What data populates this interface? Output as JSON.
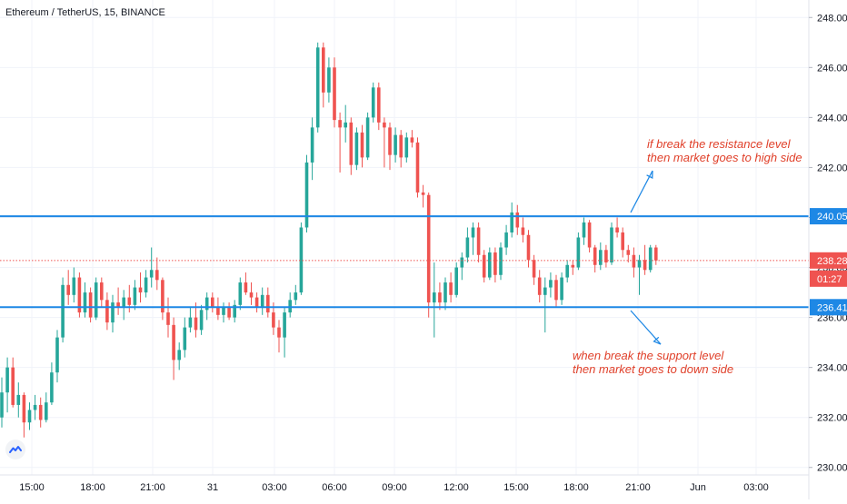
{
  "header": {
    "title": "Ethereum / TetherUS, 15, BINANCE"
  },
  "colors": {
    "up": "#26a69a",
    "down": "#ef5350",
    "line": "#1e88e5",
    "annotation": "#e0402a"
  },
  "chart_data": {
    "type": "candlestick",
    "title": "Ethereum / TetherUS, 15, BINANCE",
    "ylim": [
      229.7,
      248.7
    ],
    "y_ticks": [
      "230.00",
      "232.00",
      "234.00",
      "236.00",
      "238.00",
      "240.00",
      "242.00",
      "244.00",
      "246.00",
      "248.00"
    ],
    "x_ticks": [
      "15:00",
      "18:00",
      "21:00",
      "31",
      "03:00",
      "06:00",
      "09:00",
      "12:00",
      "15:00",
      "18:00",
      "21:00",
      "Jun",
      "03:00"
    ],
    "last_price": "238.28",
    "countdown": "01:27",
    "resistance": {
      "value": "240.05",
      "annotation_lines": [
        "if break the resistance level",
        "then market goes to high side"
      ]
    },
    "support": {
      "value": "236.41",
      "annotation_lines": [
        "when break the support level",
        "then market goes to down side"
      ]
    },
    "candles": [
      {
        "o": 232.0,
        "h": 233.6,
        "l": 231.6,
        "c": 233.0
      },
      {
        "o": 233.0,
        "h": 234.4,
        "l": 232.2,
        "c": 234.0
      },
      {
        "o": 234.0,
        "h": 234.4,
        "l": 232.4,
        "c": 232.5
      },
      {
        "o": 232.5,
        "h": 233.4,
        "l": 232.0,
        "c": 232.9
      },
      {
        "o": 232.9,
        "h": 233.0,
        "l": 231.2,
        "c": 231.8
      },
      {
        "o": 231.8,
        "h": 232.6,
        "l": 231.5,
        "c": 232.3
      },
      {
        "o": 232.3,
        "h": 232.9,
        "l": 231.9,
        "c": 232.5
      },
      {
        "o": 232.5,
        "h": 232.8,
        "l": 231.6,
        "c": 231.9
      },
      {
        "o": 231.9,
        "h": 233.0,
        "l": 231.8,
        "c": 232.6
      },
      {
        "o": 232.6,
        "h": 234.2,
        "l": 232.5,
        "c": 233.8
      },
      {
        "o": 233.8,
        "h": 235.5,
        "l": 233.4,
        "c": 235.2
      },
      {
        "o": 235.2,
        "h": 237.6,
        "l": 235.0,
        "c": 237.3
      },
      {
        "o": 237.3,
        "h": 237.9,
        "l": 236.5,
        "c": 236.9
      },
      {
        "o": 236.9,
        "h": 238.0,
        "l": 236.6,
        "c": 237.6
      },
      {
        "o": 237.6,
        "h": 237.8,
        "l": 236.0,
        "c": 236.2
      },
      {
        "o": 236.2,
        "h": 237.4,
        "l": 236.0,
        "c": 237.0
      },
      {
        "o": 237.0,
        "h": 237.2,
        "l": 235.8,
        "c": 236.0
      },
      {
        "o": 236.0,
        "h": 237.6,
        "l": 235.9,
        "c": 237.4
      },
      {
        "o": 237.4,
        "h": 237.6,
        "l": 236.4,
        "c": 236.7
      },
      {
        "o": 236.7,
        "h": 237.0,
        "l": 235.5,
        "c": 235.8
      },
      {
        "o": 235.8,
        "h": 236.9,
        "l": 235.4,
        "c": 236.6
      },
      {
        "o": 236.6,
        "h": 237.2,
        "l": 236.1,
        "c": 236.4
      },
      {
        "o": 236.4,
        "h": 237.1,
        "l": 235.9,
        "c": 236.8
      },
      {
        "o": 236.8,
        "h": 237.3,
        "l": 236.2,
        "c": 236.5
      },
      {
        "o": 236.5,
        "h": 237.5,
        "l": 236.3,
        "c": 237.2
      },
      {
        "o": 237.2,
        "h": 237.8,
        "l": 236.6,
        "c": 237.0
      },
      {
        "o": 237.0,
        "h": 237.9,
        "l": 236.8,
        "c": 237.6
      },
      {
        "o": 237.6,
        "h": 238.8,
        "l": 237.2,
        "c": 237.9
      },
      {
        "o": 237.9,
        "h": 238.4,
        "l": 237.1,
        "c": 237.5
      },
      {
        "o": 237.5,
        "h": 237.6,
        "l": 235.9,
        "c": 236.2
      },
      {
        "o": 236.2,
        "h": 236.8,
        "l": 235.2,
        "c": 235.7
      },
      {
        "o": 235.7,
        "h": 236.0,
        "l": 233.5,
        "c": 234.3
      },
      {
        "o": 234.3,
        "h": 235.0,
        "l": 233.9,
        "c": 234.7
      },
      {
        "o": 234.7,
        "h": 236.0,
        "l": 234.4,
        "c": 235.6
      },
      {
        "o": 235.6,
        "h": 236.4,
        "l": 235.4,
        "c": 236.0
      },
      {
        "o": 236.0,
        "h": 236.6,
        "l": 235.2,
        "c": 235.5
      },
      {
        "o": 235.5,
        "h": 236.5,
        "l": 235.3,
        "c": 236.3
      },
      {
        "o": 236.3,
        "h": 237.0,
        "l": 235.9,
        "c": 236.8
      },
      {
        "o": 236.8,
        "h": 237.0,
        "l": 236.2,
        "c": 236.4
      },
      {
        "o": 236.4,
        "h": 236.8,
        "l": 235.9,
        "c": 236.1
      },
      {
        "o": 236.1,
        "h": 236.6,
        "l": 235.8,
        "c": 236.4
      },
      {
        "o": 236.4,
        "h": 236.6,
        "l": 235.9,
        "c": 236.0
      },
      {
        "o": 236.0,
        "h": 236.7,
        "l": 235.8,
        "c": 236.5
      },
      {
        "o": 236.5,
        "h": 237.6,
        "l": 236.3,
        "c": 237.4
      },
      {
        "o": 237.4,
        "h": 237.8,
        "l": 236.9,
        "c": 237.0
      },
      {
        "o": 237.0,
        "h": 237.4,
        "l": 236.5,
        "c": 236.8
      },
      {
        "o": 236.8,
        "h": 237.0,
        "l": 236.2,
        "c": 236.4
      },
      {
        "o": 236.4,
        "h": 237.2,
        "l": 236.1,
        "c": 236.9
      },
      {
        "o": 236.9,
        "h": 237.2,
        "l": 236.0,
        "c": 236.2
      },
      {
        "o": 236.2,
        "h": 236.6,
        "l": 235.3,
        "c": 235.6
      },
      {
        "o": 235.6,
        "h": 235.9,
        "l": 234.6,
        "c": 235.2
      },
      {
        "o": 235.2,
        "h": 236.4,
        "l": 234.4,
        "c": 236.2
      },
      {
        "o": 236.2,
        "h": 237.0,
        "l": 236.0,
        "c": 236.7
      },
      {
        "o": 236.7,
        "h": 237.3,
        "l": 236.5,
        "c": 237.0
      },
      {
        "o": 237.0,
        "h": 239.8,
        "l": 236.9,
        "c": 239.6
      },
      {
        "o": 239.6,
        "h": 242.5,
        "l": 239.4,
        "c": 242.2
      },
      {
        "o": 242.2,
        "h": 244.0,
        "l": 241.5,
        "c": 243.6
      },
      {
        "o": 243.6,
        "h": 247.0,
        "l": 243.4,
        "c": 246.8
      },
      {
        "o": 246.8,
        "h": 247.0,
        "l": 244.4,
        "c": 245.0
      },
      {
        "o": 245.0,
        "h": 246.4,
        "l": 244.6,
        "c": 246.0
      },
      {
        "o": 246.0,
        "h": 246.4,
        "l": 243.6,
        "c": 243.9
      },
      {
        "o": 243.9,
        "h": 244.2,
        "l": 241.8,
        "c": 243.6
      },
      {
        "o": 243.6,
        "h": 244.5,
        "l": 243.0,
        "c": 243.8
      },
      {
        "o": 243.8,
        "h": 244.0,
        "l": 241.7,
        "c": 242.1
      },
      {
        "o": 242.1,
        "h": 243.6,
        "l": 241.9,
        "c": 243.4
      },
      {
        "o": 243.4,
        "h": 243.7,
        "l": 242.0,
        "c": 242.4
      },
      {
        "o": 242.4,
        "h": 244.2,
        "l": 242.3,
        "c": 244.0
      },
      {
        "o": 244.0,
        "h": 245.4,
        "l": 243.8,
        "c": 245.2
      },
      {
        "o": 245.2,
        "h": 245.4,
        "l": 243.5,
        "c": 243.8
      },
      {
        "o": 243.8,
        "h": 244.0,
        "l": 242.0,
        "c": 243.6
      },
      {
        "o": 243.6,
        "h": 243.8,
        "l": 241.9,
        "c": 242.5
      },
      {
        "o": 242.5,
        "h": 243.6,
        "l": 242.2,
        "c": 243.3
      },
      {
        "o": 243.3,
        "h": 243.5,
        "l": 242.0,
        "c": 242.4
      },
      {
        "o": 242.4,
        "h": 243.4,
        "l": 242.2,
        "c": 243.2
      },
      {
        "o": 243.2,
        "h": 243.5,
        "l": 242.8,
        "c": 243.0
      },
      {
        "o": 243.0,
        "h": 243.2,
        "l": 240.8,
        "c": 241.0
      },
      {
        "o": 241.0,
        "h": 241.3,
        "l": 240.4,
        "c": 240.9
      },
      {
        "o": 240.9,
        "h": 241.0,
        "l": 236.0,
        "c": 236.6
      },
      {
        "o": 236.6,
        "h": 238.2,
        "l": 235.2,
        "c": 237.0
      },
      {
        "o": 237.0,
        "h": 237.4,
        "l": 236.3,
        "c": 236.6
      },
      {
        "o": 236.6,
        "h": 237.6,
        "l": 236.3,
        "c": 237.4
      },
      {
        "o": 237.4,
        "h": 237.8,
        "l": 236.6,
        "c": 236.9
      },
      {
        "o": 236.9,
        "h": 238.2,
        "l": 236.8,
        "c": 238.0
      },
      {
        "o": 238.0,
        "h": 238.6,
        "l": 237.5,
        "c": 238.4
      },
      {
        "o": 238.4,
        "h": 239.6,
        "l": 238.2,
        "c": 239.2
      },
      {
        "o": 239.2,
        "h": 239.8,
        "l": 238.5,
        "c": 239.6
      },
      {
        "o": 239.6,
        "h": 239.8,
        "l": 238.2,
        "c": 238.5
      },
      {
        "o": 238.5,
        "h": 238.7,
        "l": 237.4,
        "c": 237.6
      },
      {
        "o": 237.6,
        "h": 238.8,
        "l": 237.5,
        "c": 238.6
      },
      {
        "o": 238.6,
        "h": 238.8,
        "l": 237.4,
        "c": 237.7
      },
      {
        "o": 237.7,
        "h": 239.0,
        "l": 237.5,
        "c": 238.8
      },
      {
        "o": 238.8,
        "h": 239.7,
        "l": 238.5,
        "c": 239.4
      },
      {
        "o": 239.4,
        "h": 240.6,
        "l": 239.2,
        "c": 240.2
      },
      {
        "o": 240.2,
        "h": 240.5,
        "l": 239.3,
        "c": 239.6
      },
      {
        "o": 239.6,
        "h": 240.0,
        "l": 239.0,
        "c": 239.3
      },
      {
        "o": 239.3,
        "h": 239.5,
        "l": 238.0,
        "c": 238.3
      },
      {
        "o": 238.3,
        "h": 238.5,
        "l": 237.3,
        "c": 237.6
      },
      {
        "o": 237.6,
        "h": 237.9,
        "l": 236.6,
        "c": 236.9
      },
      {
        "o": 236.9,
        "h": 237.6,
        "l": 235.4,
        "c": 237.2
      },
      {
        "o": 237.2,
        "h": 237.8,
        "l": 236.8,
        "c": 237.5
      },
      {
        "o": 237.5,
        "h": 237.7,
        "l": 236.4,
        "c": 236.7
      },
      {
        "o": 236.7,
        "h": 237.8,
        "l": 236.5,
        "c": 237.6
      },
      {
        "o": 237.6,
        "h": 238.3,
        "l": 237.4,
        "c": 238.1
      },
      {
        "o": 238.1,
        "h": 238.3,
        "l": 237.7,
        "c": 238.0
      },
      {
        "o": 238.0,
        "h": 239.4,
        "l": 237.9,
        "c": 239.2
      },
      {
        "o": 239.2,
        "h": 240.0,
        "l": 238.9,
        "c": 239.8
      },
      {
        "o": 239.8,
        "h": 239.9,
        "l": 238.6,
        "c": 238.8
      },
      {
        "o": 238.8,
        "h": 238.9,
        "l": 237.8,
        "c": 238.1
      },
      {
        "o": 238.1,
        "h": 239.0,
        "l": 237.9,
        "c": 238.7
      },
      {
        "o": 238.7,
        "h": 238.9,
        "l": 238.0,
        "c": 238.2
      },
      {
        "o": 238.2,
        "h": 239.8,
        "l": 238.1,
        "c": 239.6
      },
      {
        "o": 239.6,
        "h": 240.0,
        "l": 239.2,
        "c": 239.4
      },
      {
        "o": 239.4,
        "h": 239.6,
        "l": 238.4,
        "c": 238.7
      },
      {
        "o": 238.7,
        "h": 238.9,
        "l": 238.2,
        "c": 238.5
      },
      {
        "o": 238.5,
        "h": 238.8,
        "l": 237.6,
        "c": 238.0
      },
      {
        "o": 238.0,
        "h": 238.5,
        "l": 236.9,
        "c": 238.3
      },
      {
        "o": 238.3,
        "h": 238.9,
        "l": 237.7,
        "c": 237.9
      },
      {
        "o": 237.9,
        "h": 238.9,
        "l": 237.8,
        "c": 238.8
      },
      {
        "o": 238.8,
        "h": 238.9,
        "l": 238.1,
        "c": 238.28
      }
    ]
  }
}
